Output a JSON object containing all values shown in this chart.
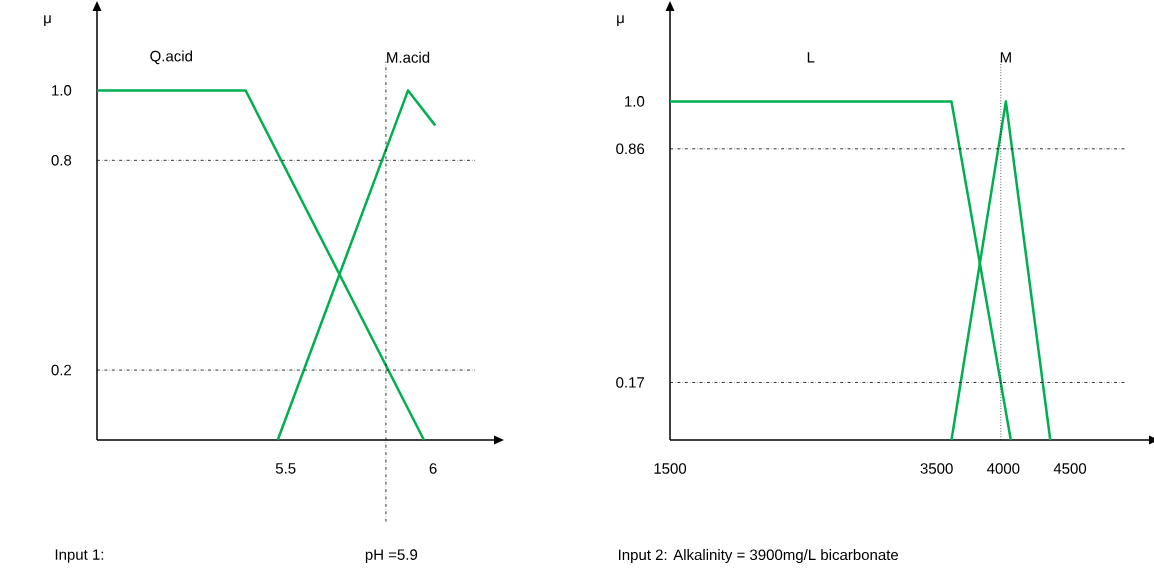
{
  "chart_data": [
    {
      "type": "line",
      "ylabel": "μ",
      "xlim": [
        4.86,
        6.21
      ],
      "ylim": [
        0,
        1.23
      ],
      "xticks": [
        5.5,
        6
      ],
      "yticks": [
        0.2,
        0.8,
        {
          "value": 1,
          "label": "1.0"
        }
      ],
      "grid": false,
      "legend": false,
      "marker": "none",
      "line_style": "solid",
      "series": [
        {
          "name": "Q.acid",
          "color": "#00b050",
          "x": [
            4.86,
            5.364,
            5.969
          ],
          "values": [
            1.0,
            1.0,
            0
          ]
        },
        {
          "name": "M.acid",
          "color": "#00b050",
          "x": [
            5.473,
            5.915,
            6.007
          ],
          "values": [
            0,
            1.0,
            0.9
          ]
        }
      ],
      "ref_lines": [
        {
          "axis": "y",
          "value": 0.8,
          "line_style": "dashdot"
        },
        {
          "axis": "y",
          "value": 0.2,
          "line_style": "dashdot"
        },
        {
          "axis": "x",
          "value": 5.84,
          "line_style": "dashdot"
        }
      ],
      "annotations": [
        "Input 1:",
        "pH =5.9"
      ]
    },
    {
      "type": "line",
      "ylabel": "μ",
      "xlim": [
        1500,
        5100
      ],
      "ylim": [
        0,
        1.27
      ],
      "xticks": [
        1500,
        3500,
        4000,
        4500
      ],
      "yticks": [
        0.17,
        0.86,
        {
          "value": 1,
          "label": "1.0"
        }
      ],
      "grid": false,
      "legend": false,
      "marker": "none",
      "line_style": "solid",
      "series": [
        {
          "name": "L",
          "color": "#00b050",
          "x": [
            1500,
            3611,
            4056
          ],
          "values": [
            1.0,
            1.0,
            0
          ]
        },
        {
          "name": "M",
          "color": "#00b050",
          "x": [
            3611,
            4019,
            4352
          ],
          "values": [
            0,
            1.0,
            0
          ]
        }
      ],
      "ref_lines": [
        {
          "axis": "y",
          "value": 0.86,
          "line_style": "dashdot"
        },
        {
          "axis": "y",
          "value": 0.17,
          "line_style": "dashdot"
        },
        {
          "axis": "x",
          "value": 3981,
          "line_style": "dotted"
        }
      ],
      "annotations": [
        "Input 2: Alkalinity = 3900mg/L bicarbonate"
      ]
    }
  ]
}
